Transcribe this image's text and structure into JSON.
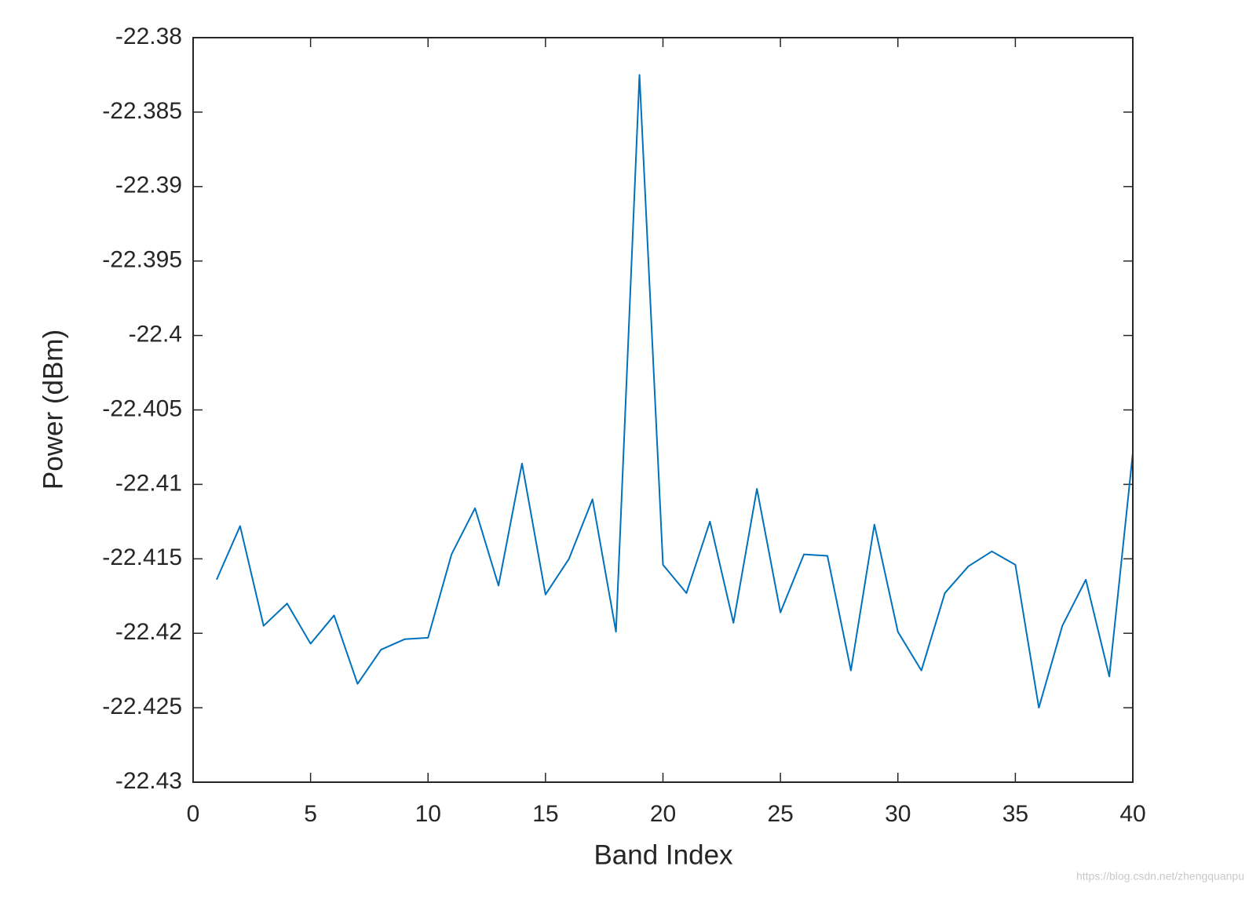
{
  "chart_data": {
    "type": "line",
    "xlabel": "Band Index",
    "ylabel": "Power (dBm)",
    "x": [
      1,
      2,
      3,
      4,
      5,
      6,
      7,
      8,
      9,
      10,
      11,
      12,
      13,
      14,
      15,
      16,
      17,
      18,
      19,
      20,
      21,
      22,
      23,
      24,
      25,
      26,
      27,
      28,
      29,
      30,
      31,
      32,
      33,
      34,
      35,
      36,
      37,
      38,
      39,
      40
    ],
    "series": [
      {
        "color": "#0072bd",
        "values": [
          -22.4164,
          -22.4128,
          -22.4195,
          -22.418,
          -22.4207,
          -22.4188,
          -22.4234,
          -22.4211,
          -22.4204,
          -22.4203,
          -22.4147,
          -22.4116,
          -22.4168,
          -22.4086,
          -22.4174,
          -22.415,
          -22.411,
          -22.4199,
          -22.3825,
          -22.4154,
          -22.4173,
          -22.4125,
          -22.4193,
          -22.4103,
          -22.4186,
          -22.4147,
          -22.4148,
          -22.4225,
          -22.4127,
          -22.4199,
          -22.4225,
          -22.4173,
          -22.4155,
          -22.4145,
          -22.4154,
          -22.425,
          -22.4195,
          -22.4164,
          -22.4229,
          -22.4079
        ]
      }
    ],
    "xlim": [
      0,
      40
    ],
    "xticks": [
      0,
      5,
      10,
      15,
      20,
      25,
      30,
      35,
      40
    ],
    "ylim": [
      -22.43,
      -22.38
    ],
    "yticks": [
      -22.43,
      -22.425,
      -22.42,
      -22.415,
      -22.41,
      -22.405,
      -22.4,
      -22.395,
      -22.39,
      -22.385,
      -22.38
    ],
    "grid": false
  },
  "watermark": "https://blog.csdn.net/zhengquanpu"
}
